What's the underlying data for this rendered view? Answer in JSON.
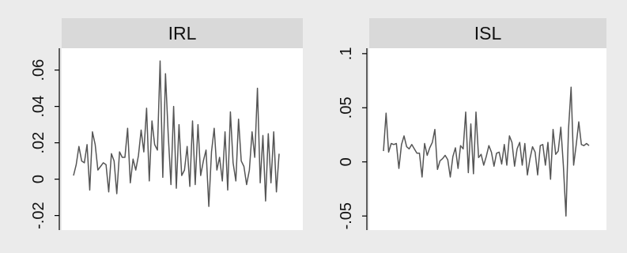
{
  "colors": {
    "background": "#ebebeb",
    "plot_area": "#ffffff",
    "strip": "#d9d9d9",
    "line": "#555555",
    "axis": "#000000"
  },
  "chart_data": [
    {
      "type": "line",
      "title": "IRL",
      "xlabel": "",
      "ylabel": "",
      "ylim": [
        -0.028,
        0.072
      ],
      "yticks": [
        -0.02,
        0,
        0.02,
        0.04,
        0.06
      ],
      "ytick_labels": [
        "-.02",
        "0",
        ".02",
        ".04",
        ".06"
      ],
      "grid": false,
      "series": [
        {
          "x": [
            0,
            1,
            2,
            3,
            4,
            5,
            6,
            7,
            8,
            9,
            10,
            11,
            12,
            13,
            14,
            15,
            16,
            17,
            18,
            19,
            20,
            21,
            22,
            23,
            24,
            25,
            26,
            27,
            28,
            29,
            30,
            31,
            32,
            33,
            34,
            35,
            36,
            37,
            38,
            39,
            40,
            41,
            42,
            43,
            44,
            45,
            46,
            47,
            48,
            49,
            50,
            51,
            52,
            53,
            54,
            55,
            56,
            57,
            58,
            59,
            60,
            61,
            62,
            63,
            64,
            65,
            66,
            67,
            68,
            69,
            70,
            71,
            72,
            73,
            74,
            75,
            76
          ],
          "values": [
            0.002,
            0.008,
            0.018,
            0.01,
            0.009,
            0.019,
            -0.006,
            0.026,
            0.019,
            0.005,
            0.007,
            0.009,
            0.008,
            -0.007,
            0.014,
            0.01,
            -0.008,
            0.015,
            0.012,
            0.012,
            0.028,
            -0.002,
            0.011,
            0.005,
            0.013,
            0.027,
            0.015,
            0.039,
            -0.001,
            0.032,
            0.019,
            0.016,
            0.065,
            0.001,
            0.058,
            0.025,
            -0.003,
            0.04,
            -0.005,
            0.03,
            0.002,
            0.005,
            0.018,
            -0.004,
            0.032,
            -0.003,
            0.03,
            0.002,
            0.01,
            0.016,
            -0.015,
            0.015,
            0.028,
            0.005,
            0.012,
            -0.001,
            0.026,
            -0.006,
            0.037,
            0.009,
            -0.001,
            0.033,
            0.01,
            0.007,
            -0.003,
            0.005,
            0.026,
            0.012,
            0.05,
            -0.002,
            0.024,
            -0.012,
            0.025,
            -0.002,
            0.026,
            -0.007,
            0.014
          ]
        }
      ]
    },
    {
      "type": "line",
      "title": "ISL",
      "xlabel": "",
      "ylabel": "",
      "ylim": [
        -0.063,
        0.105
      ],
      "yticks": [
        -0.05,
        0,
        0.05,
        0.1
      ],
      "ytick_labels": [
        "-.05",
        "0",
        ".05",
        ".1"
      ],
      "grid": false,
      "series": [
        {
          "x": [
            0,
            1,
            2,
            3,
            4,
            5,
            6,
            7,
            8,
            9,
            10,
            11,
            12,
            13,
            14,
            15,
            16,
            17,
            18,
            19,
            20,
            21,
            22,
            23,
            24,
            25,
            26,
            27,
            28,
            29,
            30,
            31,
            32,
            33,
            34,
            35,
            36,
            37,
            38,
            39,
            40,
            41,
            42,
            43,
            44,
            45,
            46,
            47,
            48,
            49,
            50,
            51,
            52,
            53,
            54,
            55,
            56,
            57,
            58,
            59,
            60,
            61,
            62,
            63,
            64,
            65,
            66,
            67,
            68,
            69,
            70,
            71,
            72,
            73,
            74,
            75,
            76,
            77,
            78,
            79,
            80
          ],
          "values": [
            0.01,
            0.045,
            0.009,
            0.017,
            0.016,
            0.017,
            -0.006,
            0.016,
            0.024,
            0.014,
            0.012,
            0.016,
            0.012,
            0.008,
            0.008,
            -0.014,
            0.017,
            0.006,
            0.013,
            0.018,
            0.03,
            -0.007,
            0.001,
            0.003,
            0.006,
            0.002,
            -0.014,
            0.005,
            0.013,
            -0.006,
            0.015,
            0.012,
            0.046,
            -0.01,
            0.035,
            -0.011,
            0.046,
            0.004,
            0.007,
            -0.003,
            0.005,
            0.015,
            0.009,
            -0.004,
            0.008,
            0.009,
            -0.002,
            0.016,
            -0.003,
            0.024,
            0.018,
            -0.004,
            0.012,
            0.018,
            -0.003,
            0.017,
            -0.012,
            0.003,
            0.014,
            0.009,
            -0.012,
            0.015,
            0.016,
            -0.003,
            0.018,
            -0.016,
            0.03,
            0.007,
            0.01,
            0.032,
            -0.003,
            -0.05,
            0.03,
            0.069,
            -0.003,
            0.016,
            0.037,
            0.016,
            0.015,
            0.017,
            0.015
          ]
        }
      ]
    }
  ]
}
